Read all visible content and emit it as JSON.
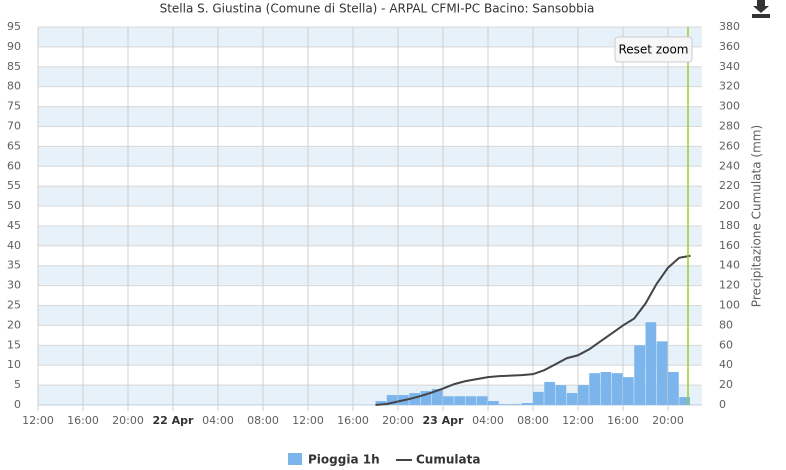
{
  "chart_data": {
    "type": "bar",
    "title": "Stella S. Giustina (Comune di Stella) - ARPAL CFMI-PC Bacino: Sansobbia",
    "y2_label": "Precipitazione Cumulata (mm)",
    "xlim": [
      0,
      59
    ],
    "xticks": [
      {
        "value": 0,
        "label": "12:00"
      },
      {
        "value": 4,
        "label": "16:00"
      },
      {
        "value": 8,
        "label": "20:00"
      },
      {
        "value": 12,
        "label": "22 Apr"
      },
      {
        "value": 16,
        "label": "04:00"
      },
      {
        "value": 20,
        "label": "08:00"
      },
      {
        "value": 24,
        "label": "12:00"
      },
      {
        "value": 28,
        "label": "16:00"
      },
      {
        "value": 32,
        "label": "20:00"
      },
      {
        "value": 36,
        "label": "23 Apr"
      },
      {
        "value": 40,
        "label": "04:00"
      },
      {
        "value": 44,
        "label": "08:00"
      },
      {
        "value": 48,
        "label": "12:00"
      },
      {
        "value": 52,
        "label": "16:00"
      },
      {
        "value": 56,
        "label": "20:00"
      }
    ],
    "ylim": [
      0,
      95
    ],
    "yticks": [
      0,
      5,
      10,
      15,
      20,
      25,
      30,
      35,
      40,
      45,
      50,
      55,
      60,
      65,
      70,
      75,
      80,
      85,
      90,
      95
    ],
    "y2lim": [
      0,
      380
    ],
    "y2ticks": [
      0,
      20,
      40,
      60,
      80,
      100,
      120,
      140,
      160,
      180,
      200,
      220,
      240,
      260,
      280,
      300,
      320,
      340,
      360,
      380
    ],
    "grid": true,
    "band_color": "#e6f1f9",
    "legend": "bottom",
    "series": [
      {
        "name": "Pioggia 1h",
        "type": "bar",
        "color": "#7cb5ec",
        "x": [
          30,
          31,
          32,
          33,
          34,
          35,
          36,
          37,
          38,
          39,
          40,
          41,
          42,
          43,
          44,
          45,
          46,
          47,
          48,
          49,
          50,
          51,
          52,
          53,
          54,
          55,
          56,
          57
        ],
        "values": [
          1,
          2.5,
          2.5,
          3,
          3.5,
          4,
          2.2,
          2.2,
          2.2,
          2.2,
          1,
          0.2,
          0.2,
          0.5,
          3.3,
          5.8,
          5,
          3,
          5,
          8,
          8.3,
          8,
          7,
          15,
          20.8,
          16,
          8.3,
          2
        ]
      },
      {
        "name": "Cumulata",
        "type": "line",
        "color": "#434348",
        "axis": "y2",
        "x": [
          30,
          31,
          32,
          33,
          34,
          35,
          36,
          37,
          38,
          39,
          40,
          41,
          42,
          43,
          44,
          45,
          46,
          47,
          48,
          49,
          50,
          51,
          52,
          53,
          54,
          55,
          56,
          57,
          58
        ],
        "values": [
          0,
          1,
          3.5,
          6,
          9,
          12.5,
          16.5,
          21,
          24,
          26,
          28,
          29,
          29.5,
          30,
          31,
          35,
          41,
          47,
          50,
          56,
          64,
          72,
          80,
          87,
          102,
          122,
          138,
          148,
          150
        ]
      }
    ]
  },
  "buttons": {
    "reset_zoom": "Reset zoom"
  }
}
